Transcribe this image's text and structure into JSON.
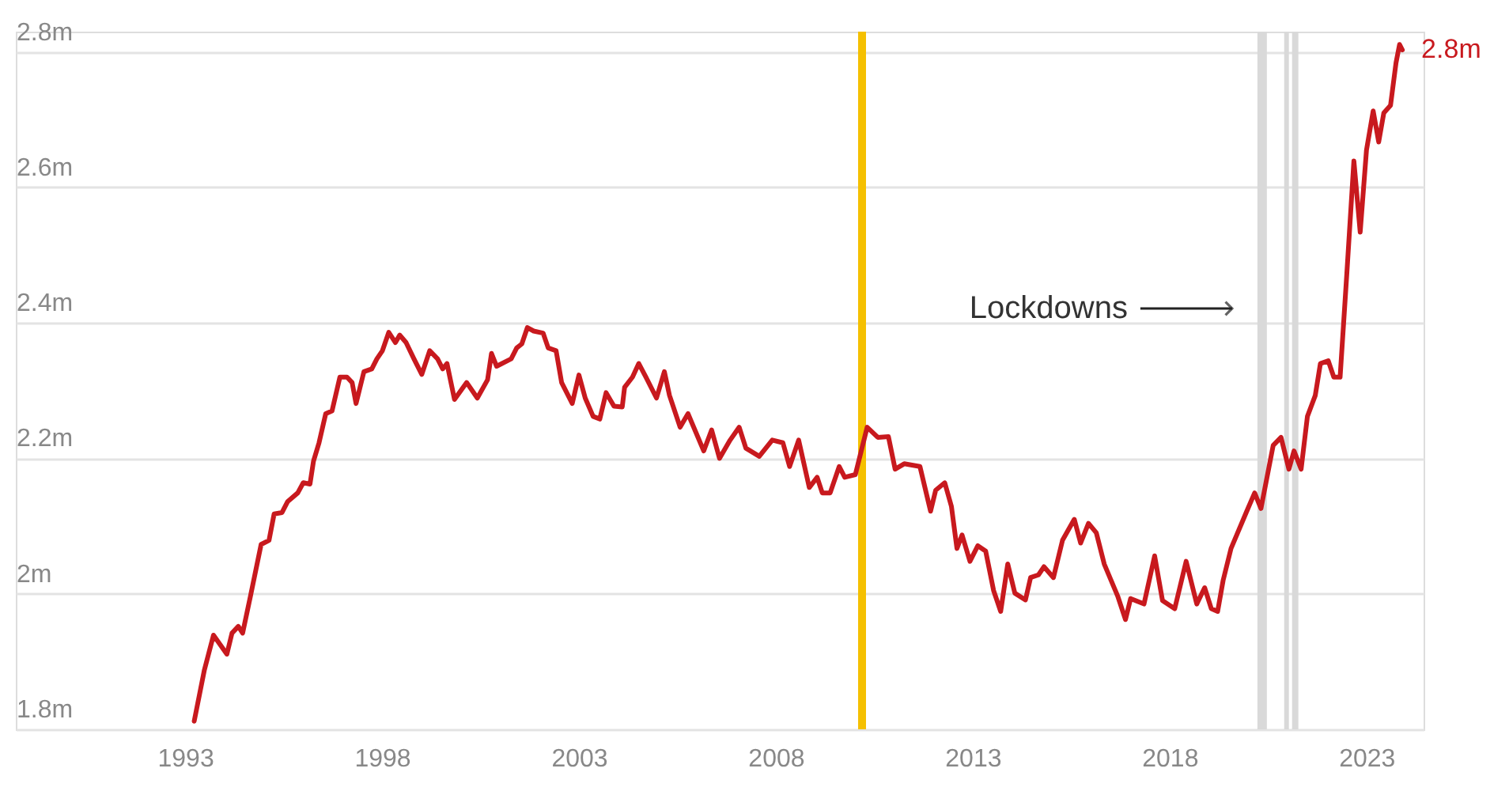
{
  "chart_data": {
    "type": "line",
    "x": [
      1993.23,
      1993.49,
      1993.72,
      1994.06,
      1994.19,
      1994.35,
      1994.46,
      1994.66,
      1994.93,
      1995.13,
      1995.26,
      1995.46,
      1995.6,
      1995.86,
      1996.0,
      1996.17,
      1996.26,
      1996.4,
      1996.57,
      1996.73,
      1996.93,
      1997.11,
      1997.24,
      1997.34,
      1997.54,
      1997.74,
      1997.87,
      1998.01,
      1998.17,
      1998.34,
      1998.45,
      1998.61,
      1998.81,
      1999.01,
      1999.21,
      1999.41,
      1999.54,
      1999.65,
      1999.84,
      2000.15,
      2000.42,
      2000.68,
      2000.78,
      2000.91,
      2001.28,
      2001.42,
      2001.55,
      2001.69,
      2001.85,
      2002.09,
      2002.22,
      2002.42,
      2002.56,
      2002.83,
      2003.0,
      2003.16,
      2003.36,
      2003.53,
      2003.69,
      2003.89,
      2004.1,
      2004.16,
      2004.36,
      2004.52,
      2004.7,
      2004.97,
      2005.17,
      2005.3,
      2005.57,
      2005.77,
      2006.17,
      2006.37,
      2006.57,
      2006.84,
      2007.07,
      2007.24,
      2007.58,
      2007.91,
      2008.18,
      2008.35,
      2008.58,
      2008.85,
      2009.05,
      2009.18,
      2009.38,
      2009.61,
      2009.75,
      2010.02,
      2010.32,
      2010.59,
      2010.86,
      2011.03,
      2011.26,
      2011.66,
      2011.93,
      2012.06,
      2012.29,
      2012.46,
      2012.6,
      2012.73,
      2012.93,
      2013.13,
      2013.33,
      2013.53,
      2013.71,
      2013.89,
      2014.07,
      2014.34,
      2014.47,
      2014.67,
      2014.81,
      2015.05,
      2015.28,
      2015.58,
      2015.74,
      2015.94,
      2016.14,
      2016.34,
      2016.68,
      2016.88,
      2017.01,
      2017.35,
      2017.62,
      2017.82,
      2018.13,
      2018.42,
      2018.69,
      2018.89,
      2019.06,
      2019.22,
      2019.36,
      2019.56,
      2019.96,
      2020.16,
      2020.32,
      2020.63,
      2020.83,
      2021.03,
      2021.16,
      2021.34,
      2021.5,
      2021.7,
      2021.83,
      2022.03,
      2022.17,
      2022.33,
      2022.5,
      2022.68,
      2022.84,
      2023.0,
      2023.17,
      2023.31,
      2023.44,
      2023.61,
      2023.75,
      2023.84,
      2023.91
    ],
    "series": [
      {
        "color": "#c8191e",
        "values": [
          1.812,
          1.888,
          1.939,
          1.911,
          1.942,
          1.952,
          1.942,
          1.997,
          2.073,
          2.079,
          2.118,
          2.12,
          2.136,
          2.149,
          2.164,
          2.162,
          2.196,
          2.223,
          2.266,
          2.27,
          2.32,
          2.32,
          2.312,
          2.281,
          2.328,
          2.332,
          2.347,
          2.359,
          2.386,
          2.371,
          2.382,
          2.371,
          2.347,
          2.324,
          2.359,
          2.347,
          2.332,
          2.34,
          2.287,
          2.312,
          2.289,
          2.316,
          2.355,
          2.336,
          2.347,
          2.363,
          2.369,
          2.393,
          2.388,
          2.385,
          2.363,
          2.359,
          2.312,
          2.281,
          2.323,
          2.289,
          2.262,
          2.258,
          2.297,
          2.277,
          2.276,
          2.305,
          2.32,
          2.34,
          2.32,
          2.289,
          2.328,
          2.293,
          2.246,
          2.266,
          2.211,
          2.242,
          2.2,
          2.227,
          2.246,
          2.215,
          2.203,
          2.227,
          2.223,
          2.188,
          2.227,
          2.157,
          2.172,
          2.149,
          2.149,
          2.188,
          2.172,
          2.176,
          2.246,
          2.231,
          2.232,
          2.184,
          2.192,
          2.188,
          2.122,
          2.153,
          2.164,
          2.129,
          2.067,
          2.087,
          2.048,
          2.071,
          2.063,
          2.005,
          1.974,
          2.044,
          2.001,
          1.991,
          2.024,
          2.028,
          2.04,
          2.024,
          2.079,
          2.11,
          2.075,
          2.104,
          2.09,
          2.044,
          1.997,
          1.962,
          1.993,
          1.985,
          2.056,
          1.99,
          1.978,
          2.048,
          1.985,
          2.009,
          1.978,
          1.974,
          2.02,
          2.067,
          2.122,
          2.149,
          2.126,
          2.219,
          2.231,
          2.184,
          2.211,
          2.184,
          2.262,
          2.293,
          2.34,
          2.344,
          2.32,
          2.32,
          2.472,
          2.639,
          2.534,
          2.655,
          2.713,
          2.667,
          2.71,
          2.721,
          2.784,
          2.811,
          2.803
        ]
      }
    ],
    "xlim": [
      1988.7,
      2024.45
    ],
    "xticks": [
      1993,
      1998,
      2003,
      2008,
      2013,
      2018,
      2023
    ],
    "ylim": [
      1.8,
      2.83
    ],
    "yticks": [
      {
        "value": 1.8,
        "label": "1.8m"
      },
      {
        "value": 2.0,
        "label": "2m"
      },
      {
        "value": 2.2,
        "label": "2.2m"
      },
      {
        "value": 2.4,
        "label": "2.4m"
      },
      {
        "value": 2.6,
        "label": "2.6m"
      },
      {
        "value": 2.8,
        "label": "2.8m"
      }
    ],
    "grid": "y",
    "ref_lines": [
      {
        "axis": "x",
        "value": 2010.19,
        "color": "#f5c000"
      }
    ],
    "bands": [
      {
        "axis": "x",
        "from": 2020.23,
        "to": 2020.47,
        "color": "#d9d9d9"
      },
      {
        "axis": "x",
        "from": 2020.91,
        "to": 2021.03,
        "color": "#d9d9d9"
      },
      {
        "axis": "x",
        "from": 2021.11,
        "to": 2021.27,
        "color": "#d9d9d9"
      }
    ],
    "annotations": [
      "Lockdowns",
      {
        "text": "2.8m",
        "x": 2023.91,
        "y": 2.803
      }
    ]
  }
}
